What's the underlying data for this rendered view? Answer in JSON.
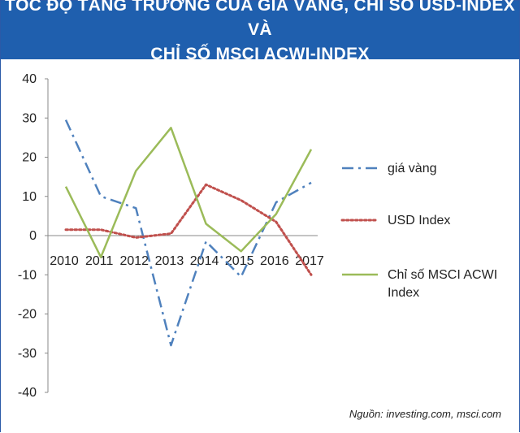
{
  "title": {
    "line1": "TỐC ĐỘ TĂNG TRƯỞNG CỦA GIÁ VÀNG, CHỈ SỐ USD-INDEX VÀ",
    "line2": "CHỈ SỐ MSCI ACWI-INDEX"
  },
  "source": "Nguồn: investing.com, msci.com",
  "colors": {
    "header": "#1f5fae",
    "gold": "#4f81bd",
    "usd": "#c0504d",
    "msci": "#9bbb59"
  },
  "chart_data": {
    "type": "line",
    "x": [
      "2010",
      "2011",
      "2012",
      "2013",
      "2014",
      "2015",
      "2016",
      "2017"
    ],
    "ylim": [
      -40,
      40
    ],
    "yticks": [
      40,
      30,
      20,
      10,
      0,
      -10,
      -20,
      -30,
      -40
    ],
    "grid": false,
    "legend_position": "right",
    "series": [
      {
        "name": "giá vàng",
        "style": "dash-dot",
        "color": "#4f81bd",
        "values": [
          29.5,
          10,
          7,
          -28,
          -1.5,
          -10.5,
          8.5,
          13.5
        ]
      },
      {
        "name": "USD Index",
        "style": "dotted",
        "color": "#c0504d",
        "values": [
          1.5,
          1.5,
          -0.5,
          0.5,
          13,
          9,
          3.5,
          -10
        ]
      },
      {
        "name": "Chỉ số MSCI ACWI Index",
        "style": "solid",
        "color": "#9bbb59",
        "values": [
          12.5,
          -5.5,
          16.5,
          27.5,
          3,
          -4,
          5.5,
          22
        ]
      }
    ]
  }
}
